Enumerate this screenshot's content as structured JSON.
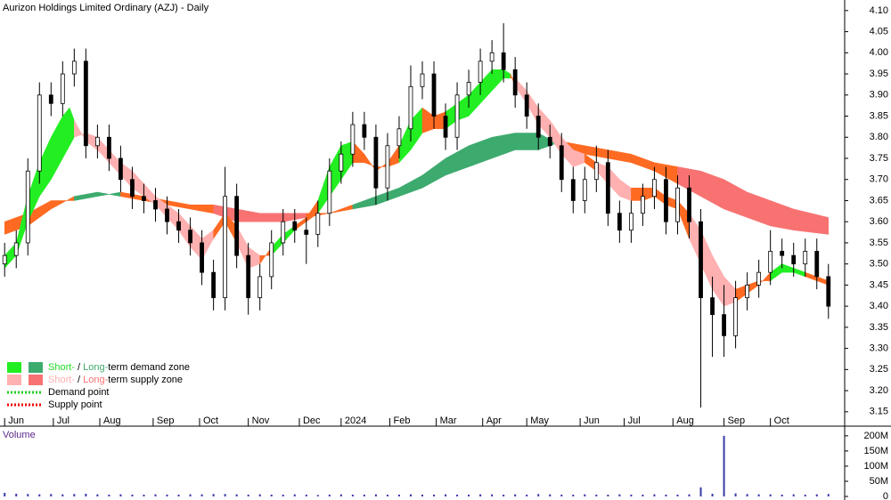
{
  "chart_data": {
    "type": "candlestick",
    "title": "Aurizon Holdings Limited Ordinary (AZJ) - Daily",
    "xlim": [
      -2,
      362
    ],
    "ylim": [
      3.118,
      4.125
    ],
    "xticks": [
      {
        "value": 0,
        "label": "Jun"
      },
      {
        "value": 21,
        "label": "Jul"
      },
      {
        "value": 41,
        "label": "Aug"
      },
      {
        "value": 64,
        "label": "Sep"
      },
      {
        "value": 84,
        "label": "Oct"
      },
      {
        "value": 105,
        "label": "Nov"
      },
      {
        "value": 127,
        "label": "Dec"
      },
      {
        "value": 145,
        "label": "2024"
      },
      {
        "value": 166,
        "label": "Feb"
      },
      {
        "value": 186,
        "label": "Mar"
      },
      {
        "value": 206,
        "label": "Apr"
      },
      {
        "value": 225,
        "label": "May"
      },
      {
        "value": 248,
        "label": "Jun"
      },
      {
        "value": 267,
        "label": "Jul"
      },
      {
        "value": 288,
        "label": "Aug"
      },
      {
        "value": 310,
        "label": "Sep"
      },
      {
        "value": 330,
        "label": "Oct"
      }
    ],
    "yticks": [
      3.15,
      {
        "value": 3.2,
        "label": "3.20"
      },
      3.25,
      {
        "value": 3.3,
        "label": "3.30"
      },
      3.35,
      {
        "value": 3.4,
        "label": "3.40"
      },
      3.45,
      {
        "value": 3.5,
        "label": "3.50"
      },
      3.55,
      {
        "value": 3.6,
        "label": "3.60"
      },
      3.65,
      {
        "value": 3.7,
        "label": "3.70"
      },
      3.75,
      {
        "value": 3.8,
        "label": "3.80"
      },
      3.85,
      {
        "value": 3.9,
        "label": "3.90"
      },
      3.95,
      {
        "value": 4.0,
        "label": "4.00"
      },
      4.05,
      {
        "value": 4.1,
        "label": "4.10"
      }
    ],
    "up_color": "#ffffff",
    "down_color": "#000000",
    "x": [
      0,
      5,
      10,
      15,
      20,
      25,
      30,
      35,
      40,
      45,
      50,
      55,
      60,
      65,
      70,
      75,
      80,
      85,
      90,
      95,
      100,
      105,
      110,
      115,
      120,
      125,
      130,
      135,
      140,
      145,
      150,
      155,
      160,
      165,
      170,
      175,
      180,
      185,
      190,
      195,
      200,
      205,
      210,
      215,
      220,
      225,
      230,
      235,
      240,
      245,
      250,
      255,
      260,
      265,
      270,
      275,
      280,
      285,
      290,
      295,
      300,
      305,
      310,
      315,
      320,
      325,
      330,
      335,
      340,
      345,
      350,
      355
    ],
    "open": [
      3.5,
      3.52,
      3.55,
      3.72,
      3.9,
      3.88,
      3.95,
      3.98,
      3.78,
      3.8,
      3.75,
      3.7,
      3.66,
      3.65,
      3.63,
      3.6,
      3.58,
      3.55,
      3.48,
      3.42,
      3.66,
      3.52,
      3.42,
      3.47,
      3.55,
      3.6,
      3.58,
      3.57,
      3.62,
      3.72,
      3.76,
      3.83,
      3.8,
      3.68,
      3.78,
      3.82,
      3.92,
      3.95,
      3.85,
      3.8,
      3.9,
      3.93,
      3.98,
      4.0,
      3.96,
      3.9,
      3.85,
      3.8,
      3.78,
      3.7,
      3.65,
      3.7,
      3.74,
      3.62,
      3.58,
      3.62,
      3.66,
      3.7,
      3.6,
      3.68,
      3.6,
      3.42,
      3.38,
      3.33,
      3.42,
      3.45,
      3.48,
      3.53,
      3.52,
      3.5,
      3.53,
      3.47
    ],
    "high": [
      3.55,
      3.58,
      3.75,
      3.93,
      3.93,
      3.98,
      4.01,
      4.01,
      3.83,
      3.83,
      3.78,
      3.73,
      3.69,
      3.68,
      3.66,
      3.63,
      3.61,
      3.58,
      3.51,
      3.73,
      3.69,
      3.55,
      3.5,
      3.58,
      3.63,
      3.63,
      3.61,
      3.65,
      3.75,
      3.79,
      3.86,
      3.86,
      3.83,
      3.81,
      3.85,
      3.97,
      3.98,
      3.98,
      3.88,
      3.93,
      3.96,
      4.01,
      4.03,
      4.07,
      3.99,
      3.93,
      3.88,
      3.83,
      3.81,
      3.73,
      3.73,
      3.78,
      3.77,
      3.65,
      3.65,
      3.69,
      3.73,
      3.73,
      3.71,
      3.71,
      3.63,
      3.47,
      3.45,
      3.46,
      3.48,
      3.51,
      3.58,
      3.56,
      3.55,
      3.56,
      3.56,
      3.5
    ],
    "low": [
      3.47,
      3.49,
      3.52,
      3.69,
      3.85,
      3.85,
      3.92,
      3.75,
      3.75,
      3.72,
      3.67,
      3.63,
      3.62,
      3.6,
      3.57,
      3.55,
      3.52,
      3.45,
      3.39,
      3.39,
      3.49,
      3.38,
      3.39,
      3.44,
      3.52,
      3.55,
      3.5,
      3.54,
      3.59,
      3.69,
      3.73,
      3.77,
      3.64,
      3.65,
      3.75,
      3.79,
      3.89,
      3.82,
      3.77,
      3.77,
      3.87,
      3.9,
      3.95,
      3.93,
      3.87,
      3.82,
      3.77,
      3.75,
      3.67,
      3.62,
      3.62,
      3.67,
      3.59,
      3.55,
      3.55,
      3.59,
      3.63,
      3.57,
      3.57,
      3.56,
      3.16,
      3.28,
      3.28,
      3.3,
      3.39,
      3.42,
      3.45,
      3.49,
      3.47,
      3.47,
      3.44,
      3.37
    ],
    "close": [
      3.52,
      3.55,
      3.72,
      3.9,
      3.88,
      3.95,
      3.98,
      3.78,
      3.8,
      3.75,
      3.7,
      3.66,
      3.65,
      3.63,
      3.6,
      3.58,
      3.55,
      3.48,
      3.42,
      3.66,
      3.52,
      3.42,
      3.47,
      3.55,
      3.6,
      3.58,
      3.57,
      3.62,
      3.72,
      3.76,
      3.83,
      3.8,
      3.68,
      3.78,
      3.82,
      3.92,
      3.95,
      3.85,
      3.8,
      3.9,
      3.93,
      3.98,
      4.0,
      3.96,
      3.9,
      3.85,
      3.8,
      3.78,
      3.7,
      3.65,
      3.7,
      3.74,
      3.62,
      3.58,
      3.62,
      3.66,
      3.7,
      3.6,
      3.68,
      3.6,
      3.42,
      3.38,
      3.33,
      3.42,
      3.45,
      3.48,
      3.53,
      3.52,
      3.5,
      3.53,
      3.47,
      3.4
    ],
    "bands": [
      {
        "x": [
          0,
          10,
          20,
          30,
          40,
          50,
          60,
          70,
          80,
          90,
          100,
          110,
          120,
          130,
          140,
          150,
          160,
          170,
          180,
          190,
          200,
          210,
          220,
          230,
          240,
          250,
          260,
          270,
          280,
          290,
          300,
          310,
          320,
          330,
          340,
          355
        ],
        "fast": [
          3.57,
          3.59,
          3.63,
          3.66,
          3.67,
          3.66,
          3.65,
          3.64,
          3.63,
          3.62,
          3.6,
          3.6,
          3.6,
          3.61,
          3.62,
          3.64,
          3.66,
          3.68,
          3.71,
          3.75,
          3.78,
          3.8,
          3.81,
          3.81,
          3.78,
          3.76,
          3.75,
          3.74,
          3.72,
          3.69,
          3.66,
          3.63,
          3.61,
          3.59,
          3.58,
          3.57
        ],
        "slow": [
          3.6,
          3.62,
          3.65,
          3.65,
          3.66,
          3.67,
          3.66,
          3.65,
          3.64,
          3.64,
          3.63,
          3.62,
          3.62,
          3.62,
          3.62,
          3.63,
          3.64,
          3.66,
          3.68,
          3.71,
          3.73,
          3.75,
          3.77,
          3.77,
          3.79,
          3.78,
          3.77,
          3.76,
          3.74,
          3.73,
          3.72,
          3.7,
          3.67,
          3.65,
          3.63,
          3.61
        ],
        "colors": [
          "#ff6a22",
          "#ff6a22",
          "#ff6a22",
          "#3daa6e",
          "#3daa6e",
          "#ff6a22",
          "#ff6a22",
          "#ff6a22",
          "#ff6a22",
          "#f87272",
          "#f87272",
          "#f87272",
          "#f87272",
          "#ff6a22",
          "#ff6a22",
          "#3daa6e",
          "#3daa6e",
          "#3daa6e",
          "#3daa6e",
          "#3daa6e",
          "#3daa6e",
          "#3daa6e",
          "#3daa6e",
          "#3daa6e",
          "#ff6a22",
          "#ff6a22",
          "#ff6a22",
          "#ff6a22",
          "#ff6a22",
          "#f87272",
          "#f87272",
          "#f87272",
          "#f87272",
          "#f87272",
          "#f87272",
          "#f87272"
        ]
      },
      {
        "x": [
          0,
          5,
          10,
          15,
          20,
          25,
          28,
          30,
          35,
          40,
          45,
          50,
          55,
          60,
          65,
          70,
          75,
          80,
          85,
          90,
          95,
          100,
          105,
          110,
          115,
          120,
          125,
          130,
          135,
          140,
          145,
          150,
          155,
          160,
          165,
          170,
          175,
          180,
          185,
          190,
          195,
          200,
          205,
          210,
          215,
          218,
          220,
          225,
          230,
          235,
          240,
          245,
          250,
          255,
          260,
          265,
          270,
          275,
          280,
          285,
          290,
          295,
          300,
          305,
          310,
          315,
          320,
          325,
          330,
          335,
          340,
          345,
          350,
          355
        ],
        "fast": [
          3.52,
          3.55,
          3.66,
          3.74,
          3.8,
          3.85,
          3.87,
          3.84,
          3.79,
          3.77,
          3.74,
          3.71,
          3.68,
          3.66,
          3.64,
          3.61,
          3.58,
          3.54,
          3.51,
          3.56,
          3.6,
          3.55,
          3.49,
          3.5,
          3.54,
          3.57,
          3.59,
          3.61,
          3.65,
          3.73,
          3.78,
          3.79,
          3.76,
          3.72,
          3.74,
          3.78,
          3.84,
          3.87,
          3.85,
          3.86,
          3.88,
          3.9,
          3.93,
          3.96,
          3.96,
          3.95,
          3.92,
          3.88,
          3.83,
          3.8,
          3.76,
          3.73,
          3.74,
          3.72,
          3.69,
          3.66,
          3.65,
          3.65,
          3.66,
          3.64,
          3.63,
          3.56,
          3.5,
          3.44,
          3.4,
          3.41,
          3.43,
          3.45,
          3.48,
          3.5,
          3.49,
          3.48,
          3.47,
          3.46
        ],
        "slow": [
          3.49,
          3.52,
          3.6,
          3.66,
          3.7,
          3.75,
          3.78,
          3.8,
          3.81,
          3.8,
          3.77,
          3.74,
          3.72,
          3.69,
          3.66,
          3.64,
          3.62,
          3.59,
          3.56,
          3.58,
          3.62,
          3.59,
          3.54,
          3.52,
          3.52,
          3.55,
          3.58,
          3.6,
          3.62,
          3.66,
          3.7,
          3.74,
          3.74,
          3.73,
          3.73,
          3.74,
          3.77,
          3.81,
          3.82,
          3.82,
          3.84,
          3.85,
          3.88,
          3.91,
          3.94,
          3.94,
          3.94,
          3.91,
          3.87,
          3.84,
          3.8,
          3.77,
          3.76,
          3.74,
          3.73,
          3.7,
          3.68,
          3.68,
          3.68,
          3.66,
          3.65,
          3.62,
          3.58,
          3.52,
          3.47,
          3.44,
          3.45,
          3.46,
          3.46,
          3.48,
          3.48,
          3.47,
          3.46,
          3.45
        ],
        "colors": [
          "#22ee22",
          "#22ee22",
          "#22ee22",
          "#22ee22",
          "#22ee22",
          "#22ee22",
          "#22ee22",
          "#ffb0b0",
          "#ffb0b0",
          "#ffb0b0",
          "#ffb0b0",
          "#ffb0b0",
          "#ffb0b0",
          "#ffb0b0",
          "#ffb0b0",
          "#ffb0b0",
          "#ffb0b0",
          "#ffb0b0",
          "#ffb0b0",
          "#ff6a22",
          "#ff6a22",
          "#ffb0b0",
          "#ffb0b0",
          "#ff6a22",
          "#22ee22",
          "#22ee22",
          "#ff6a22",
          "#ff6a22",
          "#22ee22",
          "#22ee22",
          "#22ee22",
          "#ff6a22",
          "#ff6a22",
          "#ff6a22",
          "#ff6a22",
          "#22ee22",
          "#22ee22",
          "#ff6a22",
          "#ff6a22",
          "#22ee22",
          "#22ee22",
          "#22ee22",
          "#22ee22",
          "#22ee22",
          "#22ee22",
          "#ff6a22",
          "#ffb0b0",
          "#ffb0b0",
          "#ffb0b0",
          "#ffb0b0",
          "#ffb0b0",
          "#ffb0b0",
          "#ff6a22",
          "#ffb0b0",
          "#ffb0b0",
          "#ffb0b0",
          "#ff6a22",
          "#ff6a22",
          "#ff6a22",
          "#ff6a22",
          "#ff6a22",
          "#ffb0b0",
          "#ffb0b0",
          "#ffb0b0",
          "#ffb0b0",
          "#ff6a22",
          "#ff6a22",
          "#ff6a22",
          "#22ee22",
          "#22ee22",
          "#22ee22",
          "#ff6a22",
          "#ff6a22",
          "#ff6a22"
        ]
      }
    ],
    "legend": [
      {
        "swatches": [
          "#22ee22",
          "#3daa6e"
        ],
        "parts": [
          {
            "text": "Short-",
            "color": "#22dd22"
          },
          {
            "text": " / "
          },
          {
            "text": "Long-",
            "color": "#3daa6e"
          },
          {
            "text": "term demand zone"
          }
        ]
      },
      {
        "swatches": [
          "#ffb0b0",
          "#f87272"
        ],
        "parts": [
          {
            "text": "Short-",
            "color": "#ffb0b0"
          },
          {
            "text": " / "
          },
          {
            "text": "Long-",
            "color": "#f87272"
          },
          {
            "text": "term supply zone"
          }
        ]
      },
      {
        "line_color": "#22cc22",
        "parts": [
          {
            "text": "Demand point"
          }
        ]
      },
      {
        "line_color": "#ee0000",
        "parts": [
          {
            "text": "Supply point"
          }
        ]
      }
    ],
    "volume": {
      "label": "Volume",
      "color": "#3a3aa8",
      "ylim": [
        0,
        226000000
      ],
      "yticks": [
        0,
        {
          "value": 50000000,
          "label": "50M"
        },
        {
          "value": 100000000,
          "label": "100M"
        },
        {
          "value": 150000000,
          "label": "150M"
        },
        {
          "value": 200000000,
          "label": "200M"
        }
      ],
      "values": [
        12000000,
        9000000,
        8000000,
        7000000,
        8000000,
        7000000,
        8000000,
        9000000,
        7000000,
        6000000,
        7000000,
        6000000,
        6000000,
        7000000,
        6000000,
        6000000,
        7000000,
        7000000,
        8000000,
        8000000,
        7000000,
        6000000,
        7000000,
        6000000,
        6000000,
        7000000,
        6000000,
        5000000,
        6000000,
        7000000,
        6000000,
        6000000,
        7000000,
        6000000,
        6000000,
        7000000,
        6000000,
        6000000,
        7000000,
        6000000,
        6000000,
        7000000,
        7000000,
        6000000,
        7000000,
        6000000,
        8000000,
        7000000,
        6000000,
        6000000,
        7000000,
        6000000,
        6000000,
        7000000,
        6000000,
        6000000,
        7000000,
        6000000,
        6000000,
        7000000,
        30000000,
        9000000,
        200000000,
        10000000,
        8000000,
        7000000,
        7000000,
        6000000,
        7000000,
        6000000,
        7000000,
        8000000
      ]
    }
  }
}
